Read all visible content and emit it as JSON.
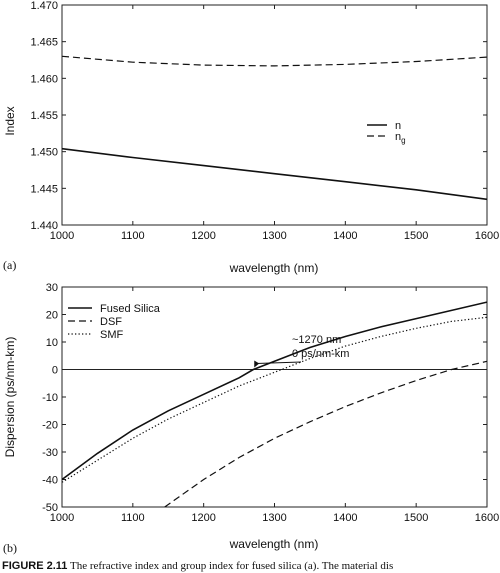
{
  "chart_data": [
    {
      "panel_label": "(a)",
      "type": "line",
      "xlabel": "wavelength (nm)",
      "ylabel": "Index",
      "xlim": [
        1000,
        1600
      ],
      "ylim": [
        1.44,
        1.47
      ],
      "xticks": [
        1000,
        1100,
        1200,
        1300,
        1400,
        1500,
        1600
      ],
      "xtick_labels": [
        "1000",
        "1100",
        "1200",
        "1300",
        "1400",
        "1500",
        "1600"
      ],
      "yticks": [
        1.44,
        1.445,
        1.45,
        1.455,
        1.46,
        1.465,
        1.47
      ],
      "ytick_labels": [
        "1.440",
        "1.445",
        "1.450",
        "1.455",
        "1.460",
        "1.465",
        "1.470"
      ],
      "grid": false,
      "legend_position": "right",
      "series": [
        {
          "name": "n",
          "style": "solid",
          "x": [
            1000,
            1100,
            1200,
            1300,
            1400,
            1500,
            1600
          ],
          "y": [
            1.4504,
            1.4492,
            1.4481,
            1.447,
            1.4459,
            1.4448,
            1.4435
          ]
        },
        {
          "name": "n",
          "name_subscript": "g",
          "style": "dashed",
          "x": [
            1000,
            1100,
            1200,
            1300,
            1400,
            1500,
            1600
          ],
          "y": [
            1.463,
            1.4622,
            1.4618,
            1.4617,
            1.4619,
            1.4623,
            1.4629
          ]
        }
      ]
    },
    {
      "panel_label": "(b)",
      "type": "line",
      "xlabel": "wavelength (nm)",
      "ylabel": "Dispersion (ps/nm-km)",
      "xlim": [
        1000,
        1600
      ],
      "ylim": [
        -50,
        30
      ],
      "xticks": [
        1000,
        1100,
        1200,
        1300,
        1400,
        1500,
        1600
      ],
      "xtick_labels": [
        "1000",
        "1100",
        "1200",
        "1300",
        "1400",
        "1500",
        "1600"
      ],
      "yticks": [
        -50,
        -40,
        -30,
        -20,
        -10,
        0,
        10,
        20,
        30
      ],
      "ytick_labels": [
        "-50",
        "-40",
        "-30",
        "-20",
        "-10",
        "0",
        "10",
        "20",
        "30"
      ],
      "grid": false,
      "zero_line": true,
      "legend_position": "top-left",
      "annotation": {
        "line1": "~1270 nm",
        "line2": "0 ps/nm-km",
        "x": 1270,
        "y": 0
      },
      "series": [
        {
          "name": "Fused Silica",
          "style": "solid",
          "x": [
            1000,
            1050,
            1100,
            1150,
            1200,
            1250,
            1270,
            1300,
            1350,
            1400,
            1450,
            1500,
            1550,
            1600
          ],
          "y": [
            -40,
            -30.5,
            -22,
            -15,
            -9,
            -3,
            0,
            3,
            8,
            12,
            15.5,
            18.5,
            21.5,
            24.5
          ]
        },
        {
          "name": "DSF",
          "style": "dashed",
          "x": [
            1145,
            1200,
            1250,
            1300,
            1350,
            1400,
            1450,
            1500,
            1550,
            1600
          ],
          "y": [
            -50,
            -40,
            -32,
            -25,
            -19,
            -13.5,
            -8.5,
            -4,
            0,
            3
          ]
        },
        {
          "name": "SMF",
          "style": "dotted",
          "x": [
            1000,
            1050,
            1100,
            1150,
            1200,
            1250,
            1300,
            1350,
            1400,
            1450,
            1500,
            1550,
            1600
          ],
          "y": [
            -41,
            -33,
            -25,
            -18,
            -12,
            -6,
            -1,
            4,
            8.5,
            12,
            15,
            17.5,
            19
          ]
        }
      ]
    }
  ],
  "caption": {
    "label": "FIGURE 2.11",
    "text": "The refractive index and group index for fused silica (a). The material dis"
  }
}
